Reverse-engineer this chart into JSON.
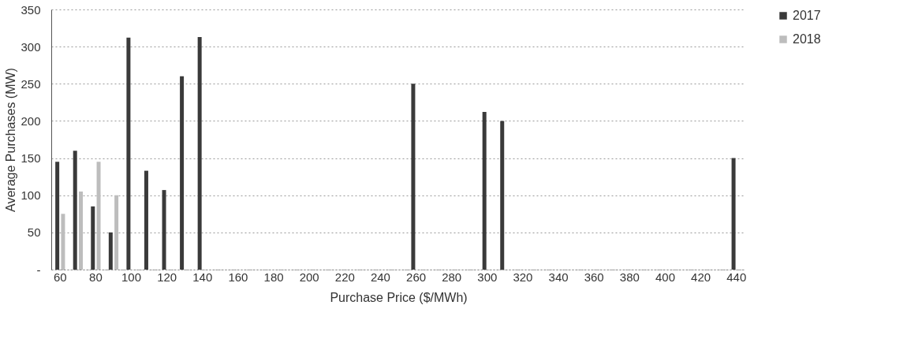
{
  "chart_data": {
    "type": "bar",
    "xlabel": "Purchase Price ($/MWh)",
    "ylabel": "Average Purchases (MW)",
    "categories": [
      "60",
      null,
      "80",
      null,
      "100",
      null,
      "120",
      null,
      "140",
      null,
      "160",
      null,
      "180",
      null,
      "200",
      null,
      "220",
      null,
      "240",
      null,
      "260",
      null,
      "280",
      null,
      "300",
      null,
      "320",
      null,
      "340",
      null,
      "360",
      null,
      "380",
      null,
      "400",
      null,
      "420",
      null,
      "440"
    ],
    "series": [
      {
        "name": "2017",
        "color": "#3a3a3a",
        "values": [
          145,
          160,
          85,
          50,
          312,
          133,
          107,
          260,
          313,
          null,
          null,
          null,
          null,
          null,
          null,
          null,
          null,
          null,
          null,
          null,
          250,
          null,
          null,
          null,
          212,
          200,
          null,
          null,
          null,
          null,
          null,
          null,
          null,
          null,
          null,
          null,
          null,
          null,
          150
        ]
      },
      {
        "name": "2018",
        "color": "#bdbdbd",
        "values": [
          75,
          105,
          145,
          100,
          null,
          null,
          null,
          null,
          null,
          null,
          null,
          null,
          null,
          null,
          null,
          null,
          null,
          null,
          null,
          null,
          null,
          null,
          null,
          null,
          null,
          null,
          null,
          null,
          null,
          null,
          null,
          null,
          null,
          null,
          null,
          null,
          null,
          null,
          null
        ]
      }
    ],
    "ylim": [
      0,
      350
    ],
    "yticks": [
      {
        "value": 0,
        "label": "-"
      },
      50,
      100,
      150,
      200,
      250,
      300,
      350
    ],
    "grid": "y",
    "legend": "right"
  }
}
